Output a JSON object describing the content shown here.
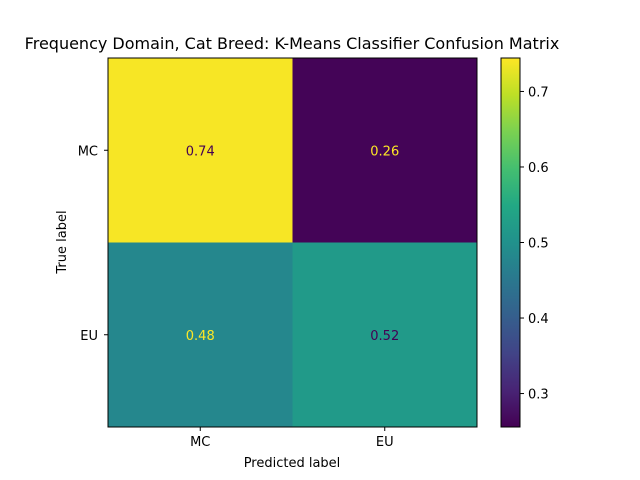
{
  "chart_data": {
    "type": "heatmap",
    "title": "Frequency Domain, Cat Breed: K-Means Classifier Confusion Matrix",
    "xlabel": "Predicted label",
    "ylabel": "True label",
    "x_categories": [
      "MC",
      "EU"
    ],
    "y_categories": [
      "MC",
      "EU"
    ],
    "values": [
      [
        0.74,
        0.26
      ],
      [
        0.48,
        0.52
      ]
    ],
    "value_labels": [
      [
        "0.74",
        "0.26"
      ],
      [
        "0.48",
        "0.52"
      ]
    ],
    "colormap": "viridis",
    "colorbar": {
      "min": 0.2557,
      "max": 0.7443,
      "ticks": [
        0.3,
        0.4,
        0.5,
        0.6,
        0.7
      ],
      "tick_labels": [
        "0.3",
        "0.4",
        "0.5",
        "0.6",
        "0.7"
      ]
    },
    "grid": false
  }
}
